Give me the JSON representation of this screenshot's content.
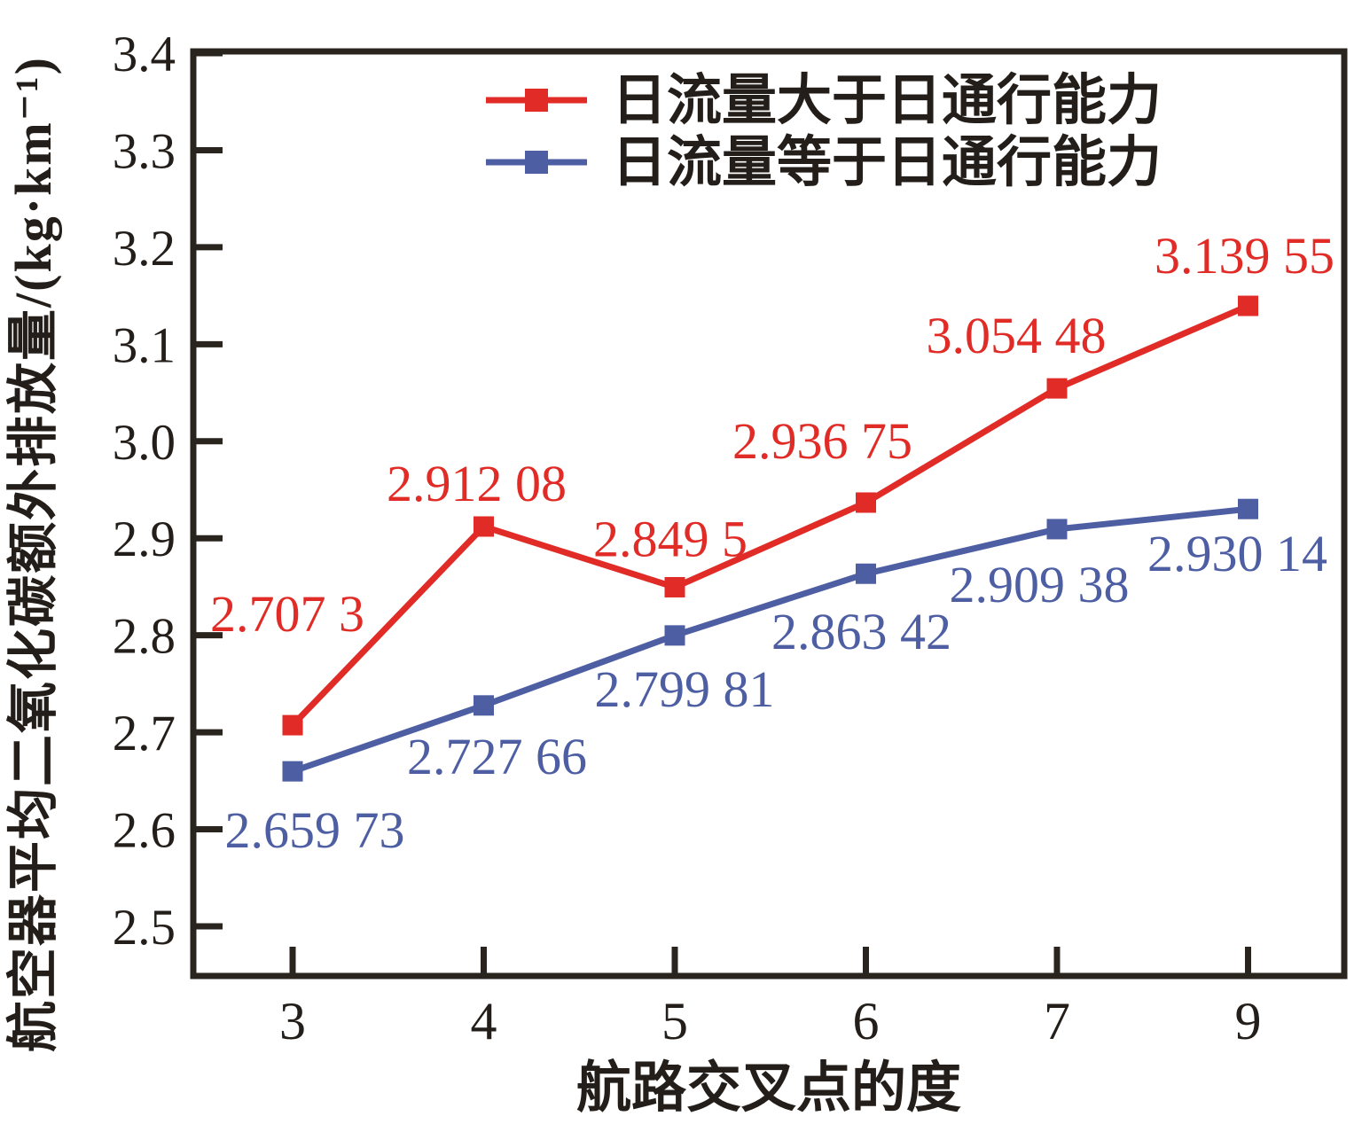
{
  "chart_data": {
    "type": "line",
    "title": "",
    "xlabel": "航路交叉点的度",
    "ylabel": "航空器平均二氧化碳额外排放量/(kg·km⁻¹)",
    "x_categories": [
      "3",
      "4",
      "5",
      "6",
      "7",
      "9"
    ],
    "y_ticks": [
      "3.4",
      "3.3",
      "3.2",
      "3.1",
      "3.0",
      "2.9",
      "2.8",
      "2.7",
      "2.6",
      "2.5"
    ],
    "ylim": [
      2.44,
      3.4
    ],
    "grid": false,
    "legend_position": "top-center-inside",
    "axis_color": "#2a241e",
    "text_color": "#231e19",
    "series": [
      {
        "name": "日流量大于日通行能力",
        "color": "#e02b26",
        "marker": "square",
        "values": [
          2.7073,
          2.91208,
          2.8495,
          2.93675,
          3.05448,
          3.13955
        ],
        "labels": [
          "2.707 3",
          "2.912 08",
          "2.849 5",
          "2.936 75",
          "3.054 48",
          "3.139 55"
        ]
      },
      {
        "name": "日流量等于日通行能力",
        "color": "#4d5ea3",
        "marker": "square",
        "values": [
          2.65973,
          2.72766,
          2.79981,
          2.86342,
          2.90938,
          2.93014
        ],
        "labels": [
          "2.659 73",
          "2.727 66",
          "2.799 81",
          "2.863 42",
          "2.909 38",
          "2.930 14"
        ]
      }
    ]
  }
}
